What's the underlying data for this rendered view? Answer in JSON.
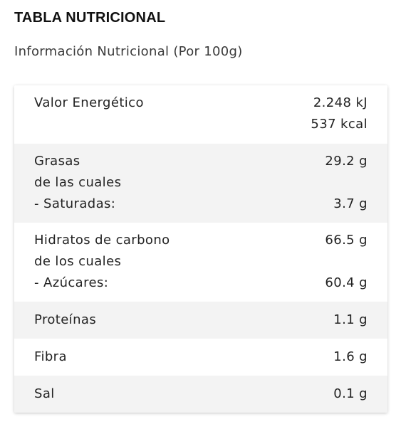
{
  "title": "TABLA NUTRICIONAL",
  "subtitle": "Información Nutricional (Por 100g)",
  "table": {
    "energy": {
      "label": "Valor Energético",
      "kj": "2.248 kJ",
      "kcal": "537 kcal"
    },
    "fat": {
      "label": "Grasas",
      "value": "29.2 g",
      "sub_intro": "de las cuales",
      "sub_label": "- Saturadas:",
      "sub_value": "3.7 g"
    },
    "carbs": {
      "label": "Hidratos de carbono",
      "value": "66.5 g",
      "sub_intro": "de los cuales",
      "sub_label": "- Azúcares:",
      "sub_value": "60.4 g"
    },
    "protein": {
      "label": "Proteínas",
      "value": "1.1 g"
    },
    "fiber": {
      "label": "Fibra",
      "value": "1.6 g"
    },
    "salt": {
      "label": "Sal",
      "value": "0.1 g"
    }
  }
}
